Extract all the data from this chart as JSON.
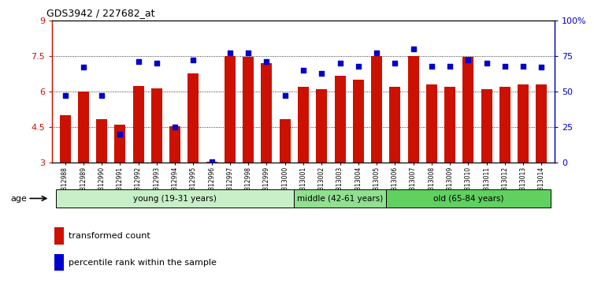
{
  "title": "GDS3942 / 227682_at",
  "samples": [
    "GSM812988",
    "GSM812989",
    "GSM812990",
    "GSM812991",
    "GSM812992",
    "GSM812993",
    "GSM812994",
    "GSM812995",
    "GSM812996",
    "GSM812997",
    "GSM812998",
    "GSM812999",
    "GSM813000",
    "GSM813001",
    "GSM813002",
    "GSM813003",
    "GSM813004",
    "GSM813005",
    "GSM813006",
    "GSM813007",
    "GSM813008",
    "GSM813009",
    "GSM813010",
    "GSM813011",
    "GSM813012",
    "GSM813013",
    "GSM813014"
  ],
  "bar_values": [
    5.0,
    6.0,
    4.85,
    4.6,
    6.25,
    6.15,
    4.55,
    6.75,
    3.05,
    7.5,
    7.45,
    7.2,
    4.85,
    6.2,
    6.1,
    6.65,
    6.5,
    7.5,
    6.2,
    7.5,
    6.3,
    6.2,
    7.45,
    6.1,
    6.2,
    6.3,
    6.3
  ],
  "percentile_values": [
    47,
    67,
    47,
    20,
    71,
    70,
    25,
    72,
    1,
    77,
    77,
    71,
    47,
    65,
    63,
    70,
    68,
    77,
    70,
    80,
    68,
    68,
    72,
    70,
    68,
    68,
    67
  ],
  "groups": [
    {
      "label": "young (19-31 years)",
      "start": 0,
      "end": 13,
      "color": "#c8f0c8"
    },
    {
      "label": "middle (42-61 years)",
      "start": 13,
      "end": 18,
      "color": "#90e090"
    },
    {
      "label": "old (65-84 years)",
      "start": 18,
      "end": 27,
      "color": "#60d060"
    }
  ],
  "bar_color": "#cc1100",
  "dot_color": "#0000cc",
  "ylim_left": [
    3,
    9
  ],
  "ylim_right": [
    0,
    100
  ],
  "yticks_left": [
    3,
    4.5,
    6,
    7.5,
    9
  ],
  "yticks_right": [
    0,
    25,
    50,
    75,
    100
  ],
  "ytick_labels_left": [
    "3",
    "4.5",
    "6",
    "7.5",
    "9"
  ],
  "ytick_labels_right": [
    "0",
    "25",
    "50",
    "75",
    "100%"
  ],
  "gridlines": [
    4.5,
    6.0,
    7.5
  ],
  "bar_width": 0.6,
  "age_label": "age"
}
